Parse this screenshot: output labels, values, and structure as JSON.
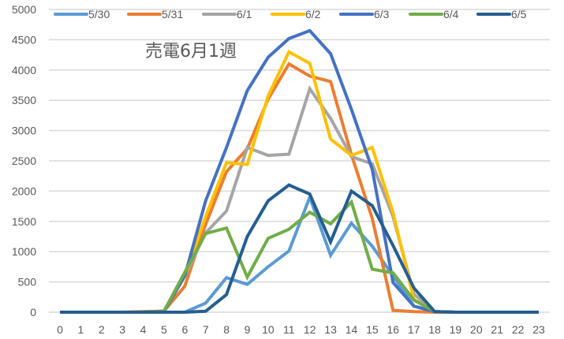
{
  "chart_data": {
    "type": "line",
    "title": "売電6月1週",
    "xlabel": "",
    "ylabel": "",
    "x": [
      0,
      1,
      2,
      3,
      4,
      5,
      6,
      7,
      8,
      9,
      10,
      11,
      12,
      13,
      14,
      15,
      16,
      17,
      18,
      19,
      20,
      21,
      22,
      23
    ],
    "ylim": [
      0,
      5000
    ],
    "yticks": [
      0,
      500,
      1000,
      1500,
      2000,
      2500,
      3000,
      3500,
      4000,
      4500,
      5000
    ],
    "grid": true,
    "legend_position": "top",
    "series": [
      {
        "name": "5/30",
        "color": "#5B9BD5",
        "values": [
          0,
          0,
          0,
          0,
          0,
          0,
          0,
          150,
          570,
          460,
          750,
          1010,
          1900,
          940,
          1470,
          1090,
          600,
          100,
          10,
          0,
          0,
          0,
          0,
          0
        ]
      },
      {
        "name": "5/31",
        "color": "#ED7D31",
        "values": [
          0,
          0,
          0,
          0,
          10,
          20,
          430,
          1450,
          2320,
          2700,
          3520,
          4100,
          3900,
          3810,
          2600,
          1550,
          30,
          10,
          0,
          0,
          0,
          0,
          0,
          0
        ]
      },
      {
        "name": "6/1",
        "color": "#A5A5A5",
        "values": [
          0,
          0,
          0,
          0,
          0,
          10,
          600,
          1310,
          1670,
          2720,
          2590,
          2610,
          3690,
          3200,
          2570,
          2450,
          1580,
          300,
          10,
          0,
          0,
          0,
          0,
          0
        ]
      },
      {
        "name": "6/2",
        "color": "#FFC000",
        "values": [
          0,
          0,
          0,
          0,
          0,
          10,
          600,
          1580,
          2470,
          2440,
          3570,
          4300,
          4110,
          2860,
          2590,
          2720,
          1640,
          210,
          10,
          0,
          0,
          0,
          0,
          0
        ]
      },
      {
        "name": "6/3",
        "color": "#4472C4",
        "values": [
          0,
          0,
          0,
          0,
          0,
          10,
          600,
          1840,
          2720,
          3660,
          4210,
          4520,
          4650,
          4270,
          3350,
          2360,
          490,
          100,
          10,
          0,
          0,
          0,
          0,
          0
        ]
      },
      {
        "name": "6/4",
        "color": "#70AD47",
        "values": [
          0,
          0,
          0,
          0,
          0,
          20,
          660,
          1300,
          1390,
          580,
          1220,
          1370,
          1650,
          1460,
          1820,
          710,
          650,
          200,
          10,
          0,
          0,
          0,
          0,
          0
        ]
      },
      {
        "name": "6/5",
        "color": "#255E91",
        "values": [
          0,
          0,
          0,
          0,
          0,
          0,
          0,
          15,
          290,
          1250,
          1840,
          2100,
          1950,
          1160,
          2000,
          1760,
          1100,
          400,
          10,
          0,
          0,
          0,
          0,
          0
        ]
      }
    ]
  }
}
